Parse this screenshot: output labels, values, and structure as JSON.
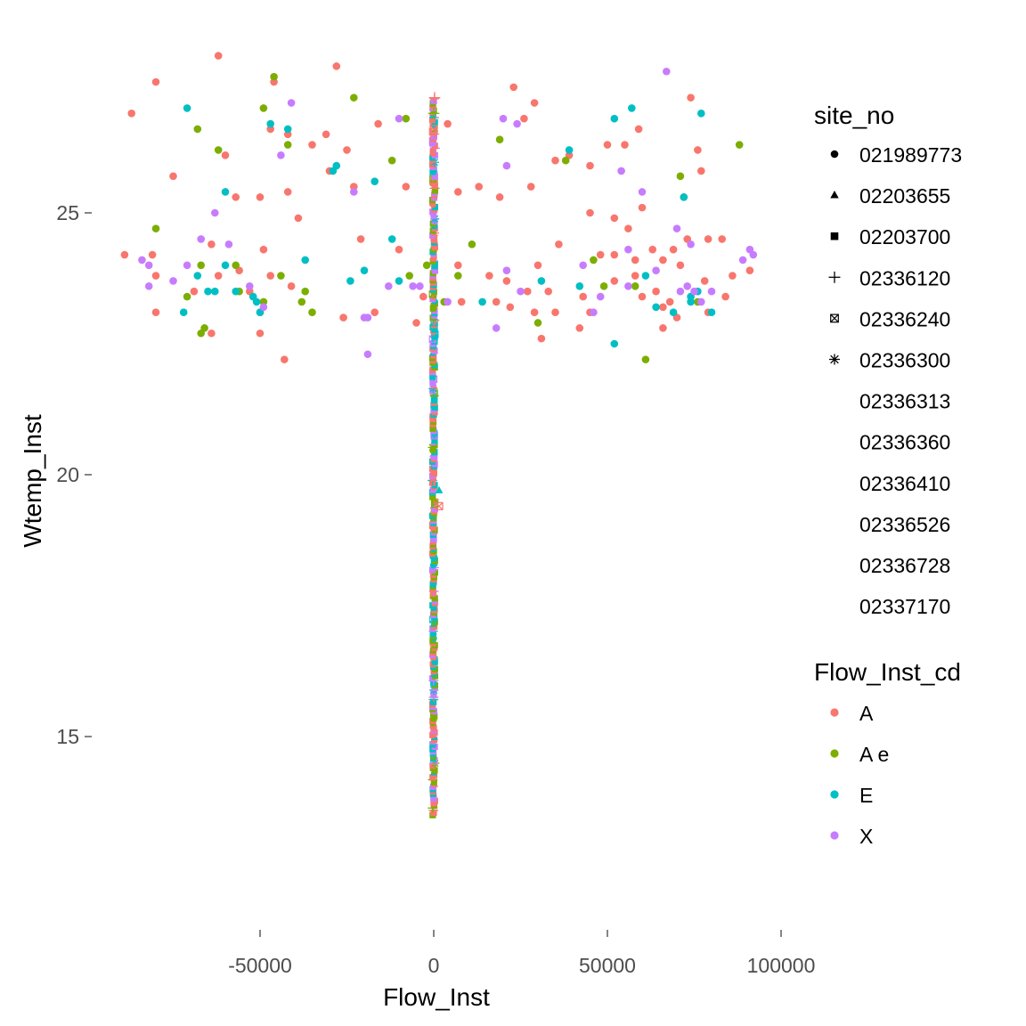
{
  "chart_data": {
    "type": "scatter",
    "title": "",
    "xlabel": "Flow_Inst",
    "ylabel": "Wtemp_Inst",
    "xlim": [
      -92000,
      92000
    ],
    "ylim": [
      13.4,
      28.2
    ],
    "x_ticks": [
      -50000,
      0,
      50000,
      100000
    ],
    "x_tick_labels": [
      "-50000",
      "0",
      "50000",
      "100000"
    ],
    "y_ticks": [
      15,
      20,
      25
    ],
    "y_tick_labels": [
      "15",
      "20",
      "25"
    ],
    "grid": false,
    "legend_position": "right",
    "legends": [
      {
        "title": "site_no",
        "aesthetic": "shape",
        "entries": [
          {
            "label": "021989773",
            "shape": "circle"
          },
          {
            "label": "02203655",
            "shape": "triangle"
          },
          {
            "label": "02203700",
            "shape": "square"
          },
          {
            "label": "02336120",
            "shape": "plus"
          },
          {
            "label": "02336240",
            "shape": "square-cross"
          },
          {
            "label": "02336300",
            "shape": "asterisk"
          },
          {
            "label": "02336313",
            "shape": "none"
          },
          {
            "label": "02336360",
            "shape": "none"
          },
          {
            "label": "02336410",
            "shape": "none"
          },
          {
            "label": "02336526",
            "shape": "none"
          },
          {
            "label": "02336728",
            "shape": "none"
          },
          {
            "label": "02337170",
            "shape": "none"
          }
        ]
      },
      {
        "title": "Flow_Inst_cd",
        "aesthetic": "colour",
        "entries": [
          {
            "label": "A",
            "color": "#F8766D"
          },
          {
            "label": "A e",
            "color": "#7CAE00"
          },
          {
            "label": "E",
            "color": "#00BFC4"
          },
          {
            "label": "X",
            "color": "#C77CFF"
          }
        ]
      }
    ],
    "series": [
      {
        "name": "A",
        "color": "#F8766D",
        "points": [
          [
            -62000,
            28.0
          ],
          [
            -28000,
            27.8
          ],
          [
            -80000,
            27.5
          ],
          [
            -46000,
            27.5
          ],
          [
            -87000,
            26.9
          ],
          [
            -47000,
            26.6
          ],
          [
            -42000,
            26.5
          ],
          [
            -35000,
            26.3
          ],
          [
            -31000,
            26.5
          ],
          [
            -25000,
            26.2
          ],
          [
            -16000,
            26.7
          ],
          [
            -60000,
            26.1
          ],
          [
            -75000,
            25.7
          ],
          [
            -57000,
            25.3
          ],
          [
            -50000,
            25.3
          ],
          [
            -42000,
            25.4
          ],
          [
            -30000,
            25.8
          ],
          [
            -23000,
            25.5
          ],
          [
            -8000,
            25.5
          ],
          [
            -39000,
            24.9
          ],
          [
            -64000,
            24.4
          ],
          [
            -49000,
            24.3
          ],
          [
            -21000,
            24.5
          ],
          [
            -10000,
            24.3
          ],
          [
            -89000,
            24.2
          ],
          [
            -81000,
            24.2
          ],
          [
            -80000,
            23.8
          ],
          [
            -62000,
            23.8
          ],
          [
            -56000,
            23.9
          ],
          [
            -47000,
            23.8
          ],
          [
            -69000,
            23.5
          ],
          [
            -53000,
            23.5
          ],
          [
            -41000,
            23.6
          ],
          [
            -80000,
            23.1
          ],
          [
            -50000,
            23.1
          ],
          [
            -26000,
            23.0
          ],
          [
            -17000,
            23.1
          ],
          [
            -64000,
            22.7
          ],
          [
            -50000,
            22.7
          ],
          [
            -43000,
            22.2
          ],
          [
            -5000,
            22.9
          ],
          [
            -3000,
            23.4
          ],
          [
            4000,
            26.7
          ],
          [
            7000,
            25.4
          ],
          [
            13000,
            25.5
          ],
          [
            23000,
            27.4
          ],
          [
            29000,
            27.1
          ],
          [
            26000,
            26.8
          ],
          [
            28000,
            25.5
          ],
          [
            35000,
            26.0
          ],
          [
            39000,
            26.1
          ],
          [
            45000,
            25.9
          ],
          [
            50000,
            26.3
          ],
          [
            55000,
            26.3
          ],
          [
            59000,
            26.6
          ],
          [
            60000,
            25.1
          ],
          [
            74000,
            27.2
          ],
          [
            76000,
            26.2
          ],
          [
            77000,
            25.8
          ],
          [
            19000,
            25.3
          ],
          [
            45000,
            25.0
          ],
          [
            52000,
            24.9
          ],
          [
            56000,
            24.7
          ],
          [
            63000,
            24.3
          ],
          [
            69000,
            24.3
          ],
          [
            73000,
            24.5
          ],
          [
            79000,
            24.5
          ],
          [
            83000,
            24.5
          ],
          [
            30000,
            24.0
          ],
          [
            36000,
            24.4
          ],
          [
            48000,
            24.2
          ],
          [
            52000,
            24.2
          ],
          [
            58000,
            24.1
          ],
          [
            66000,
            24.1
          ],
          [
            71000,
            24.0
          ],
          [
            86000,
            23.8
          ],
          [
            91000,
            23.9
          ],
          [
            7000,
            24.0
          ],
          [
            16000,
            23.8
          ],
          [
            21000,
            23.7
          ],
          [
            27000,
            23.5
          ],
          [
            33000,
            23.5
          ],
          [
            43000,
            23.4
          ],
          [
            52000,
            23.7
          ],
          [
            58000,
            23.8
          ],
          [
            64000,
            23.5
          ],
          [
            68000,
            23.3
          ],
          [
            78000,
            23.7
          ],
          [
            84000,
            23.4
          ],
          [
            18000,
            23.3
          ],
          [
            22000,
            23.2
          ],
          [
            29000,
            23.1
          ],
          [
            35000,
            23.1
          ],
          [
            45000,
            23.1
          ],
          [
            60000,
            23.4
          ],
          [
            66000,
            23.2
          ],
          [
            70000,
            23.0
          ],
          [
            79000,
            23.1
          ],
          [
            31000,
            22.6
          ],
          [
            42000,
            22.8
          ],
          [
            66000,
            22.8
          ],
          [
            8000,
            23.3
          ]
        ]
      },
      {
        "name": "A e",
        "color": "#7CAE00",
        "points": [
          [
            -46000,
            27.6
          ],
          [
            -23000,
            27.2
          ],
          [
            -49000,
            27.0
          ],
          [
            -68000,
            26.6
          ],
          [
            -8000,
            26.8
          ],
          [
            -42000,
            26.3
          ],
          [
            -62000,
            26.2
          ],
          [
            -12000,
            26.0
          ],
          [
            19000,
            26.4
          ],
          [
            38000,
            26.0
          ],
          [
            88000,
            26.3
          ],
          [
            -80000,
            24.7
          ],
          [
            -67000,
            24.0
          ],
          [
            -57000,
            24.0
          ],
          [
            -44000,
            23.8
          ],
          [
            -37000,
            23.5
          ],
          [
            -38000,
            23.3
          ],
          [
            -71000,
            23.4
          ],
          [
            -66000,
            22.8
          ],
          [
            -67000,
            22.7
          ],
          [
            -56000,
            23.5
          ],
          [
            -49000,
            23.3
          ],
          [
            -35000,
            23.1
          ],
          [
            -7000,
            23.8
          ],
          [
            -2000,
            24.0
          ],
          [
            7000,
            23.8
          ],
          [
            11000,
            24.4
          ],
          [
            3000,
            23.3
          ],
          [
            30000,
            22.9
          ],
          [
            46000,
            24.1
          ],
          [
            49000,
            23.6
          ],
          [
            58000,
            23.6
          ],
          [
            61000,
            22.2
          ],
          [
            71000,
            25.7
          ],
          [
            76000,
            23.3
          ],
          [
            72000,
            25.3
          ]
        ]
      },
      {
        "name": "E",
        "color": "#00BFC4",
        "points": [
          [
            -71000,
            27.0
          ],
          [
            -47000,
            26.7
          ],
          [
            -42000,
            26.6
          ],
          [
            -28000,
            25.9
          ],
          [
            -29000,
            25.8
          ],
          [
            -17000,
            25.6
          ],
          [
            -60000,
            25.4
          ],
          [
            -60000,
            24.0
          ],
          [
            -52000,
            23.4
          ],
          [
            -68000,
            23.8
          ],
          [
            -65000,
            23.5
          ],
          [
            -63000,
            23.5
          ],
          [
            -57000,
            23.5
          ],
          [
            -51000,
            23.3
          ],
          [
            -72000,
            23.1
          ],
          [
            -50000,
            23.1
          ],
          [
            -37000,
            24.1
          ],
          [
            -24000,
            23.7
          ],
          [
            -20000,
            23.9
          ],
          [
            -12000,
            24.5
          ],
          [
            -10000,
            23.7
          ],
          [
            14000,
            23.3
          ],
          [
            31000,
            23.7
          ],
          [
            39000,
            26.2
          ],
          [
            42000,
            23.6
          ],
          [
            52000,
            26.8
          ],
          [
            57000,
            27.0
          ],
          [
            72000,
            25.3
          ],
          [
            77000,
            26.9
          ],
          [
            74000,
            23.4
          ],
          [
            76000,
            23.5
          ],
          [
            80000,
            23.1
          ],
          [
            52000,
            22.5
          ],
          [
            61000,
            23.8
          ],
          [
            64000,
            23.2
          ],
          [
            69000,
            23.1
          ],
          [
            74000,
            23.3
          ]
        ]
      },
      {
        "name": "X",
        "color": "#C77CFF",
        "points": [
          [
            -82000,
            24.0
          ],
          [
            -84000,
            24.1
          ],
          [
            -82000,
            23.6
          ],
          [
            -75000,
            23.7
          ],
          [
            -71000,
            24.0
          ],
          [
            -67000,
            24.5
          ],
          [
            -63000,
            25.0
          ],
          [
            -59000,
            24.4
          ],
          [
            -53000,
            23.6
          ],
          [
            -49000,
            23.2
          ],
          [
            -44000,
            26.1
          ],
          [
            -41000,
            27.1
          ],
          [
            -23000,
            25.4
          ],
          [
            -20000,
            23.0
          ],
          [
            -19000,
            23.0
          ],
          [
            -19000,
            22.3
          ],
          [
            -13000,
            23.6
          ],
          [
            -10000,
            26.8
          ],
          [
            -6000,
            23.6
          ],
          [
            -4000,
            23.6
          ],
          [
            4000,
            23.3
          ],
          [
            20000,
            26.8
          ],
          [
            21000,
            25.9
          ],
          [
            24000,
            26.7
          ],
          [
            25000,
            23.5
          ],
          [
            21000,
            23.9
          ],
          [
            18000,
            22.8
          ],
          [
            43000,
            24.0
          ],
          [
            48000,
            23.4
          ],
          [
            54000,
            25.8
          ],
          [
            56000,
            24.3
          ],
          [
            60000,
            25.4
          ],
          [
            67000,
            27.7
          ],
          [
            70000,
            24.7
          ],
          [
            64000,
            23.9
          ],
          [
            71000,
            23.5
          ],
          [
            73000,
            23.6
          ],
          [
            75000,
            23.5
          ],
          [
            74000,
            24.4
          ],
          [
            77000,
            23.3
          ],
          [
            80000,
            23.5
          ],
          [
            89000,
            24.1
          ],
          [
            91000,
            24.3
          ],
          [
            92000,
            24.2
          ],
          [
            46000,
            23.1
          ],
          [
            56000,
            23.6
          ]
        ]
      }
    ],
    "vertical_cluster": {
      "x": 0,
      "y_range": [
        13.5,
        27.2
      ],
      "note_colors": [
        "#F8766D",
        "#7CAE00",
        "#00BFC4",
        "#C77CFF"
      ]
    }
  }
}
